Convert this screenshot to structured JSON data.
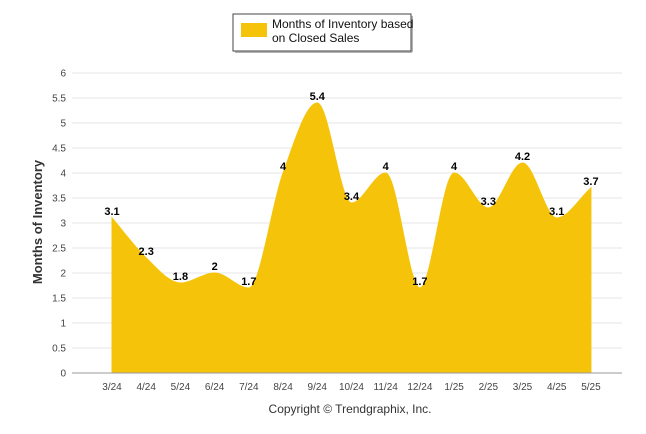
{
  "chart_data": {
    "type": "area",
    "categories": [
      "3/24",
      "4/24",
      "5/24",
      "6/24",
      "7/24",
      "8/24",
      "9/24",
      "10/24",
      "11/24",
      "12/24",
      "1/25",
      "2/25",
      "3/25",
      "4/25",
      "5/25"
    ],
    "series": [
      {
        "name": "Months of Inventory based on Closed Sales",
        "values": [
          3.1,
          2.3,
          1.8,
          2,
          1.7,
          4,
          5.4,
          3.4,
          4,
          1.7,
          4,
          3.3,
          4.2,
          3.1,
          3.7
        ],
        "color": "#F5C40A"
      }
    ],
    "data_labels": [
      "3.1",
      "2.3",
      "1.8",
      "2",
      "1.7",
      "4",
      "5.4",
      "3.4",
      "4",
      "1.7",
      "4",
      "3.3",
      "4.2",
      "3.1",
      "3.7"
    ],
    "ylabel": "Months of Inventory",
    "xlabel": "",
    "ylim": [
      0,
      6
    ],
    "y_ticks": [
      "0",
      "0.5",
      "1",
      "1.5",
      "2",
      "2.5",
      "3",
      "3.5",
      "4",
      "4.5",
      "5",
      "5.5",
      "6"
    ],
    "grid": true,
    "legend_position": "top-center"
  },
  "legend": {
    "line1": "Months of Inventory based",
    "line2": "on Closed Sales"
  },
  "footer": "Copyright © Trendgraphix, Inc."
}
